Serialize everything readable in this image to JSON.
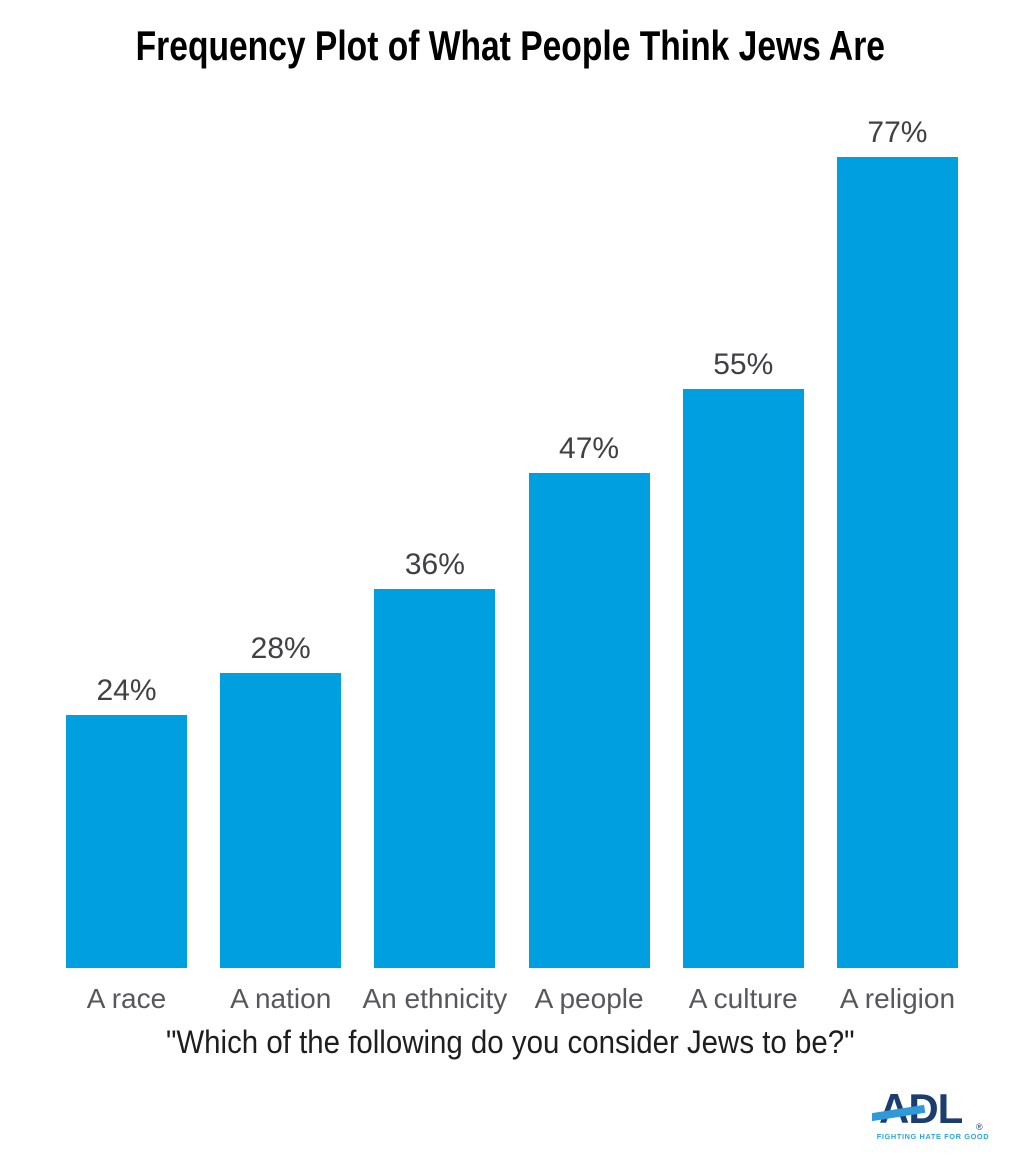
{
  "chart_data": {
    "type": "bar",
    "title": "Frequency Plot of What People Think Jews Are",
    "categories": [
      "A race",
      "A nation",
      "An ethnicity",
      "A people",
      "A culture",
      "A religion"
    ],
    "values": [
      24,
      28,
      36,
      47,
      55,
      77
    ],
    "value_labels": [
      "24%",
      "28%",
      "36%",
      "47%",
      "55%",
      "77%"
    ],
    "xlabel": "\"Which of the following do you consider Jews to be?\"",
    "ylabel": "",
    "ylim": [
      0,
      80
    ],
    "grid": false,
    "legend": "none",
    "axis_lines": false,
    "bar_color": "#00A0E0",
    "value_label_color": "#414042",
    "category_label_color": "#58585B",
    "title_color": "#000000"
  },
  "footer_logo": {
    "text": "ADL",
    "registered_mark": "®",
    "tagline": "FIGHTING HATE FOR GOOD",
    "navy_color": "#1B3E6F",
    "band_color": "#2E9BD8",
    "tagline_color": "#29A8E0"
  }
}
